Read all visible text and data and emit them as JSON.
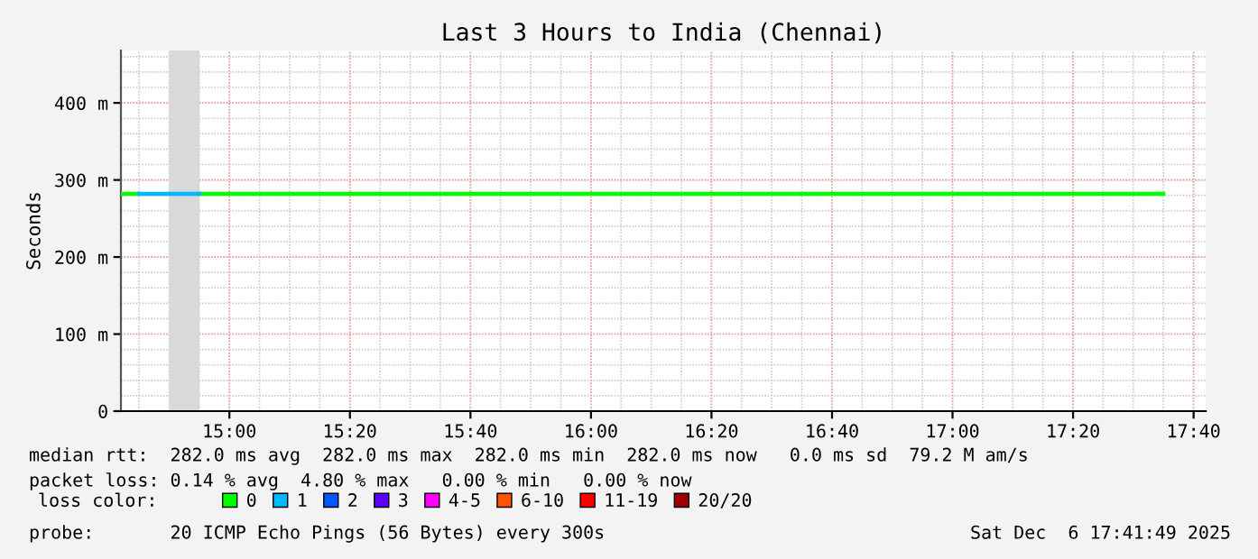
{
  "chart_data": {
    "type": "line",
    "title": "Last 3 Hours to India (Chennai)",
    "ylabel": "Seconds",
    "xlim": [
      14.7,
      17.7
    ],
    "ylim": [
      0,
      468
    ],
    "xticks": [
      {
        "value": 15,
        "label": "15:00"
      },
      {
        "value": 15.3333,
        "label": "15:20"
      },
      {
        "value": 15.6667,
        "label": "15:40"
      },
      {
        "value": 16,
        "label": "16:00"
      },
      {
        "value": 16.3333,
        "label": "16:20"
      },
      {
        "value": 16.6667,
        "label": "16:40"
      },
      {
        "value": 17,
        "label": "17:00"
      },
      {
        "value": 17.3333,
        "label": "17:20"
      },
      {
        "value": 17.6667,
        "label": "17:40"
      }
    ],
    "yticks": [
      0,
      {
        "value": 100,
        "label": "100 m"
      },
      {
        "value": 200,
        "label": "200 m"
      },
      {
        "value": 300,
        "label": "300 m"
      },
      {
        "value": 400,
        "label": "400 m"
      }
    ],
    "grid": true,
    "legend": "bottom",
    "legend_title": "loss color:",
    "bands": [
      {
        "axis": "x",
        "from": 14.833,
        "to": 14.917,
        "color": "#d9d9d9"
      }
    ],
    "series": [
      {
        "name": "0",
        "color": "#00ff00",
        "x": [
          14.917,
          17.583
        ],
        "values": [
          282,
          282
        ]
      },
      {
        "color": "#00ff00",
        "x": [
          14.7,
          14.75
        ],
        "values": [
          282,
          282
        ]
      },
      {
        "name": "1",
        "color": "#00b8ff",
        "x": [
          14.75,
          14.917
        ],
        "values": [
          282,
          282
        ]
      },
      {
        "name": "2",
        "color": "#0059ff"
      },
      {
        "name": "3",
        "color": "#5e00ff"
      },
      {
        "name": "4-5",
        "color": "#ff00ff"
      },
      {
        "name": "6-10",
        "color": "#ff5500"
      },
      {
        "name": "11-19",
        "color": "#ff0000"
      },
      {
        "name": "20/20",
        "color": "#a10000"
      }
    ],
    "annotations": [
      "median rtt:  282.0 ms avg  282.0 ms max  282.0 ms min  282.0 ms now   0.0 ms sd  79.2 M am/s",
      "packet loss: 0.14 % avg  4.80 % max   0.00 % min   0.00 % now",
      "probe:       20 ICMP Echo Pings (56 Bytes) every 300s",
      "Sat Dec  6 17:41:49 2025"
    ]
  }
}
